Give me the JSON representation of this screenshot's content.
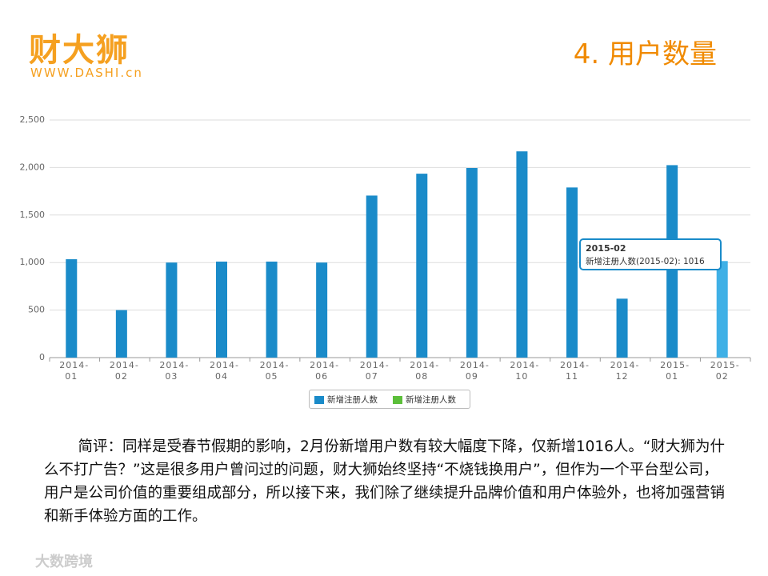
{
  "logo": {
    "name": "财大狮",
    "url": "WWW.DASHI.cn"
  },
  "heading": "4. 用户数量",
  "chart_data": {
    "type": "bar",
    "categories": [
      "2014-01",
      "2014-02",
      "2014-03",
      "2014-04",
      "2014-05",
      "2014-06",
      "2014-07",
      "2014-08",
      "2014-09",
      "2014-10",
      "2014-11",
      "2014-12",
      "2015-01",
      "2015-02"
    ],
    "series": [
      {
        "name": "新增注册人数",
        "color": "#1a8bc9",
        "values": [
          1035,
          500,
          1000,
          1010,
          1010,
          1000,
          1705,
          1935,
          1995,
          2170,
          1790,
          620,
          2025,
          1016
        ]
      },
      {
        "name": "新增注册人数",
        "color": "#5cbf3a",
        "values": [
          null,
          null,
          null,
          null,
          null,
          null,
          null,
          null,
          null,
          null,
          null,
          null,
          null,
          null
        ]
      }
    ],
    "ylim": [
      0,
      2500
    ],
    "yticks": [
      0,
      500,
      {
        "value": 1000,
        "label": "1,000"
      },
      {
        "value": 1500,
        "label": "1,500"
      },
      {
        "value": 2000,
        "label": "2,000"
      },
      {
        "value": 2500,
        "label": "2,500"
      }
    ],
    "grid": true,
    "tooltip": {
      "title": "2015-02",
      "text": "新增注册人数(2015-02): 1016"
    }
  },
  "comment": "简评：同样是受春节假期的影响，2月份新增用户数有较大幅度下降，仅新增1016人。“财大狮为什么不打广告？”这是很多用户曾问过的问题，财大狮始终坚持“不烧钱换用户”，但作为一个平台型公司，用户是公司价值的重要组成部分，所以接下来，我们除了继续提升品牌价值和用户体验外，也将加强营销和新手体验方面的工作。",
  "watermark": "大数跨境"
}
